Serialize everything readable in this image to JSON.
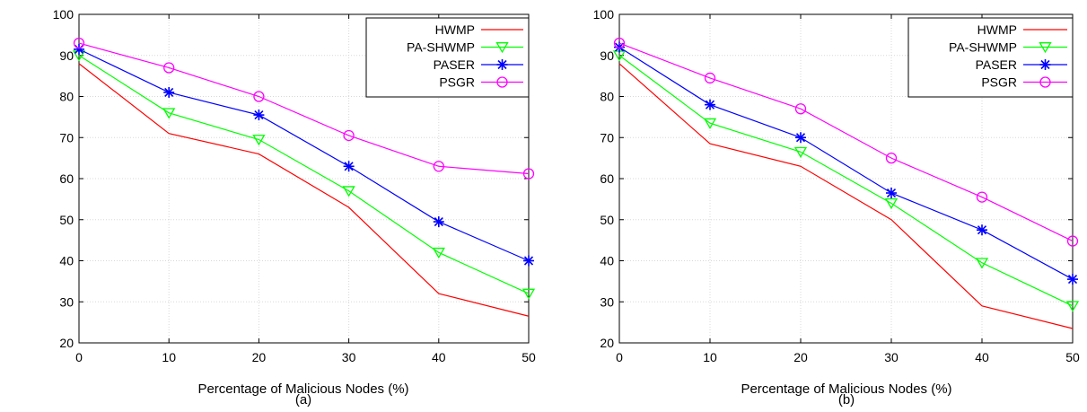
{
  "chart_data": [
    {
      "type": "line",
      "panel_label": "(a)",
      "xlabel": "Percentage of Malicious Nodes (%)",
      "ylabel": "",
      "x": [
        0,
        10,
        20,
        30,
        40,
        50
      ],
      "xlim": [
        0,
        50
      ],
      "ylim": [
        20,
        100
      ],
      "xticks": [
        0,
        10,
        20,
        30,
        40,
        50
      ],
      "yticks": [
        20,
        30,
        40,
        50,
        60,
        70,
        80,
        90,
        100
      ],
      "grid": true,
      "legend": "top-right",
      "series": [
        {
          "name": "HWMP",
          "color": "#ff0000",
          "marker": "none",
          "values": [
            88,
            71,
            66,
            53,
            32,
            26.5
          ]
        },
        {
          "name": "PA-SHWMP",
          "color": "#00ff00",
          "marker": "triangle-down",
          "values": [
            90,
            76,
            69.5,
            57,
            42,
            32
          ]
        },
        {
          "name": "PASER",
          "color": "#0000ff",
          "marker": "asterisk",
          "values": [
            91.5,
            81,
            75.5,
            63,
            49.5,
            40
          ]
        },
        {
          "name": "PSGR",
          "color": "#ff00ff",
          "marker": "circle",
          "values": [
            93,
            87,
            80,
            70.5,
            63,
            61.2
          ]
        }
      ]
    },
    {
      "type": "line",
      "panel_label": "(b)",
      "xlabel": "Percentage of Malicious Nodes (%)",
      "ylabel": "",
      "x": [
        0,
        10,
        20,
        30,
        40,
        50
      ],
      "xlim": [
        0,
        50
      ],
      "ylim": [
        20,
        100
      ],
      "xticks": [
        0,
        10,
        20,
        30,
        40,
        50
      ],
      "yticks": [
        20,
        30,
        40,
        50,
        60,
        70,
        80,
        90,
        100
      ],
      "grid": true,
      "legend": "top-right",
      "series": [
        {
          "name": "HWMP",
          "color": "#ff0000",
          "marker": "none",
          "values": [
            88,
            68.5,
            63,
            50,
            29,
            23.5
          ]
        },
        {
          "name": "PA-SHWMP",
          "color": "#00ff00",
          "marker": "triangle-down",
          "values": [
            90,
            73.5,
            66.5,
            54,
            39.5,
            29
          ]
        },
        {
          "name": "PASER",
          "color": "#0000ff",
          "marker": "asterisk",
          "values": [
            92,
            78,
            70,
            56.5,
            47.5,
            35.5
          ]
        },
        {
          "name": "PSGR",
          "color": "#ff00ff",
          "marker": "circle",
          "values": [
            93,
            84.5,
            77,
            65,
            55.5,
            44.8
          ]
        }
      ]
    }
  ]
}
